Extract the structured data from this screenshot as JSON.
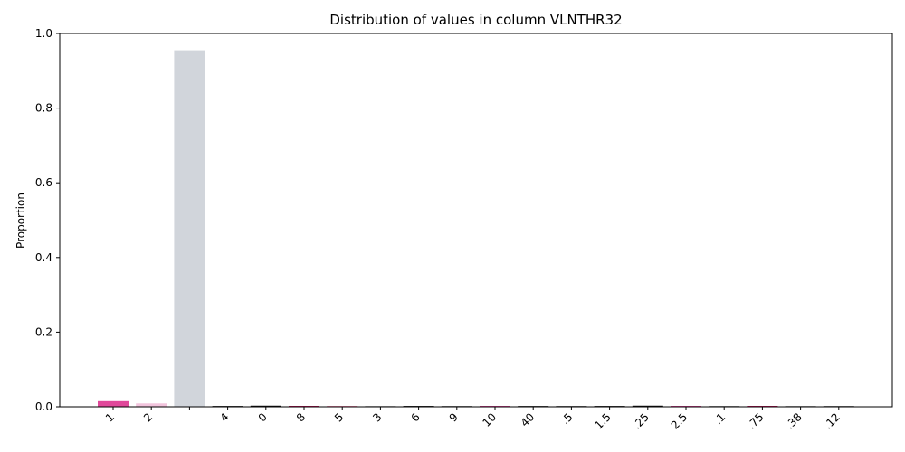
{
  "chart_data": {
    "type": "bar",
    "title": "Distribution of values in column VLNTHR32",
    "xlabel": "",
    "ylabel": "Proportion",
    "ylim": [
      0,
      1.0
    ],
    "yticks": [
      "0.0",
      "0.2",
      "0.4",
      "0.6",
      "0.8",
      "1.0"
    ],
    "grid": false,
    "categories": [
      "1",
      "2",
      "",
      "4",
      "0",
      "8",
      "5",
      "3",
      "6",
      "9",
      "10",
      "40",
      ".5",
      "1.5",
      ".25",
      "2.5",
      ".1",
      ".75",
      ".38",
      ".12"
    ],
    "values": [
      0.015,
      0.009,
      0.955,
      0.002,
      0.003,
      0.002,
      0.002,
      0.002,
      0.002,
      0.001,
      0.002,
      0.001,
      0.001,
      0.002,
      0.003,
      0.002,
      0.0005,
      0.0005,
      0.0005,
      0.0005
    ],
    "colors": [
      "#e0489a",
      "#f2c4dd",
      "#d1d5db",
      "#4a4a4a",
      "#111111",
      "#c2185b",
      "#f48fb1",
      "#bdbdbd",
      "#333333",
      "#888888",
      "#e0489a",
      "#555555",
      "#777777",
      "#444444",
      "#111111",
      "#e0489a",
      "#999999",
      "#c2185b",
      "#aaaaaa",
      "#888888"
    ]
  }
}
